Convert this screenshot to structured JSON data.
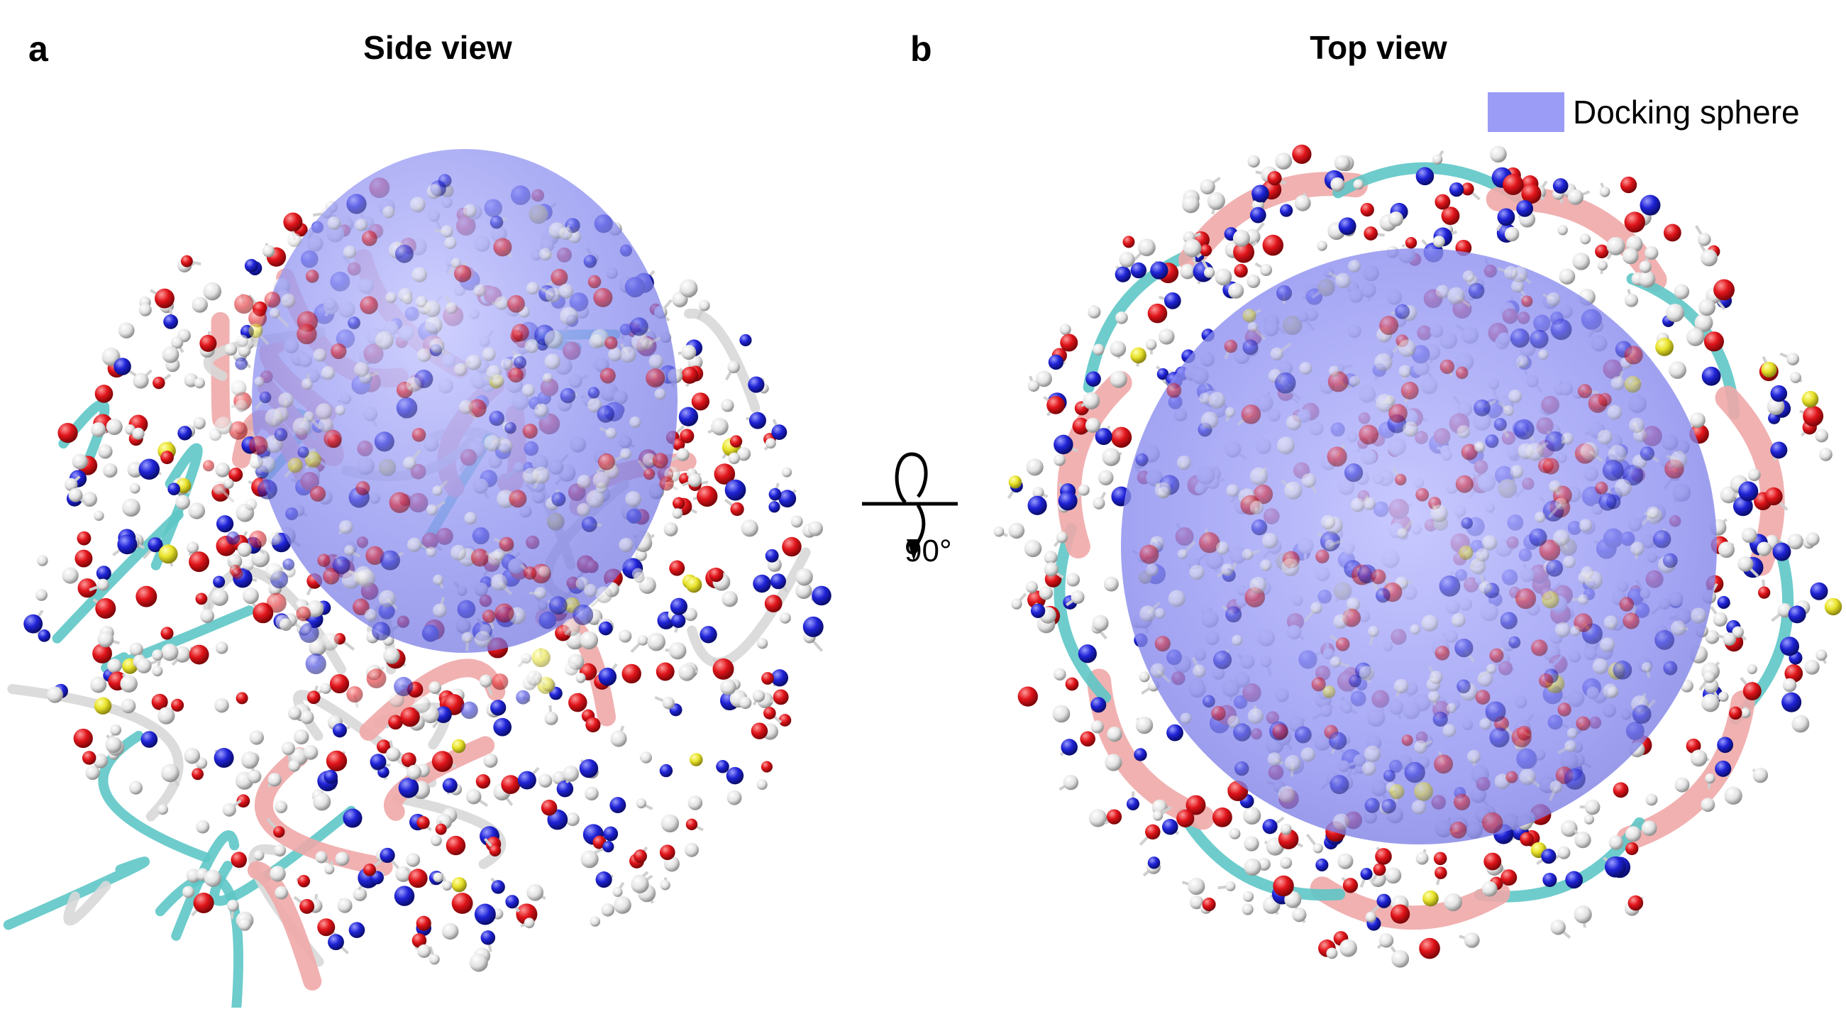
{
  "panels": [
    {
      "letter": "a",
      "title": "Side view"
    },
    {
      "letter": "b",
      "title": "Top view"
    }
  ],
  "legend": {
    "label": "Docking sphere",
    "color": "#9a9cf6"
  },
  "rotation": {
    "label": "90°"
  },
  "colors": {
    "sphere": "#8c8ef5",
    "oxygen": "#e0141a",
    "nitrogen": "#1f23d6",
    "carbon": "#e8e8e8",
    "sulfur": "#e8e22a",
    "beta_strand": "#f0a8a8",
    "turn": "#5ec6c6",
    "coil": "#d8d8d8"
  }
}
